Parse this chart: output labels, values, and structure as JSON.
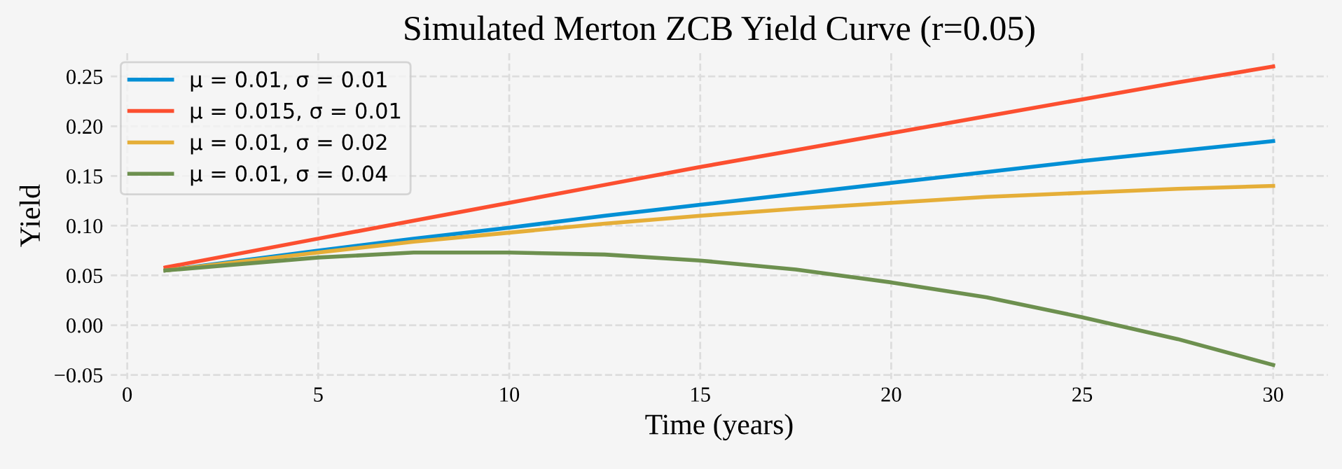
{
  "chart_data": {
    "type": "line",
    "title": "Simulated Merton ZCB Yield Curve (r=0.05)",
    "xlabel": "Time (years)",
    "ylabel": "Yield",
    "x": [
      1,
      5,
      7.5,
      10,
      12.5,
      15,
      17.5,
      20,
      22.5,
      25,
      27.5,
      30
    ],
    "series": [
      {
        "name": "μ = 0.01, σ = 0.01",
        "color": "#008fd5",
        "values": [
          0.055,
          0.075,
          0.087,
          0.098,
          0.11,
          0.121,
          0.132,
          0.143,
          0.154,
          0.165,
          0.175,
          0.185
        ]
      },
      {
        "name": "μ = 0.015, σ = 0.01",
        "color": "#fc4f30",
        "values": [
          0.058,
          0.087,
          0.105,
          0.123,
          0.141,
          0.159,
          0.176,
          0.193,
          0.21,
          0.227,
          0.244,
          0.26
        ]
      },
      {
        "name": "μ = 0.01, σ = 0.02",
        "color": "#e5ae38",
        "values": [
          0.055,
          0.073,
          0.084,
          0.093,
          0.102,
          0.11,
          0.117,
          0.123,
          0.129,
          0.133,
          0.137,
          0.14
        ]
      },
      {
        "name": "μ = 0.01, σ = 0.04",
        "color": "#6d904f",
        "values": [
          0.055,
          0.068,
          0.073,
          0.073,
          0.071,
          0.065,
          0.056,
          0.043,
          0.028,
          0.008,
          -0.014,
          -0.04
        ]
      }
    ],
    "xlim": [
      -0.45,
      31.45
    ],
    "ylim": [
      -0.055,
      0.275
    ],
    "xticks": [
      0,
      5,
      10,
      15,
      20,
      25,
      30
    ],
    "yticks": [
      {
        "value": -0.05,
        "label": "−0.05"
      },
      {
        "value": 0,
        "label": "0.00"
      },
      {
        "value": 0.05,
        "label": "0.05"
      },
      {
        "value": 0.1,
        "label": "0.10"
      },
      {
        "value": 0.15,
        "label": "0.15"
      },
      {
        "value": 0.2,
        "label": "0.20"
      },
      {
        "value": 0.25,
        "label": "0.25"
      }
    ],
    "grid": true,
    "legend": "top left",
    "marker": "none",
    "line_style": "solid"
  }
}
